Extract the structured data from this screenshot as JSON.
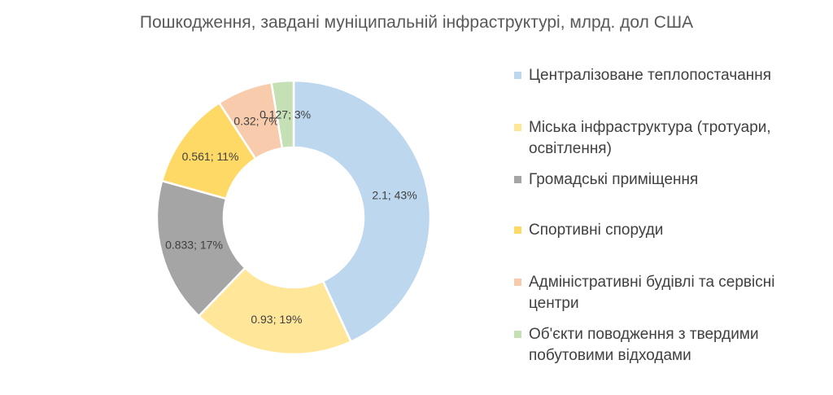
{
  "chart_data": {
    "type": "pie",
    "style": "donut",
    "title": "Пошкодження, завдані муніципальній інфраструктурі, млрд. дол США",
    "legend_position": "right",
    "slices": [
      {
        "name": "Централізоване теплопостачання",
        "value": 2.1,
        "percent": "43%",
        "label": "2.1; 43%",
        "color": "#BDD7EE"
      },
      {
        "name": "Міська інфраструктура (тротуари, освітлення)",
        "value": 0.93,
        "percent": "19%",
        "label": "0.93; 19%",
        "color": "#FFE699"
      },
      {
        "name": "Громадські приміщення",
        "value": 0.833,
        "percent": "17%",
        "label": "0.833; 17%",
        "color": "#A5A5A5"
      },
      {
        "name": "Спортивні споруди",
        "value": 0.561,
        "percent": "11%",
        "label": "0.561; 11%",
        "color": "#FFD966"
      },
      {
        "name": "Адміністративні будівлі та сервісні центри",
        "value": 0.32,
        "percent": "7%",
        "label": "0.32; 7%",
        "color": "#F8CBAD"
      },
      {
        "name": "Об'єкти поводження з твердими побутовими відходами",
        "value": 0.127,
        "percent": "3%",
        "label": "0.127; 3%",
        "color": "#C5E0B4"
      }
    ]
  }
}
